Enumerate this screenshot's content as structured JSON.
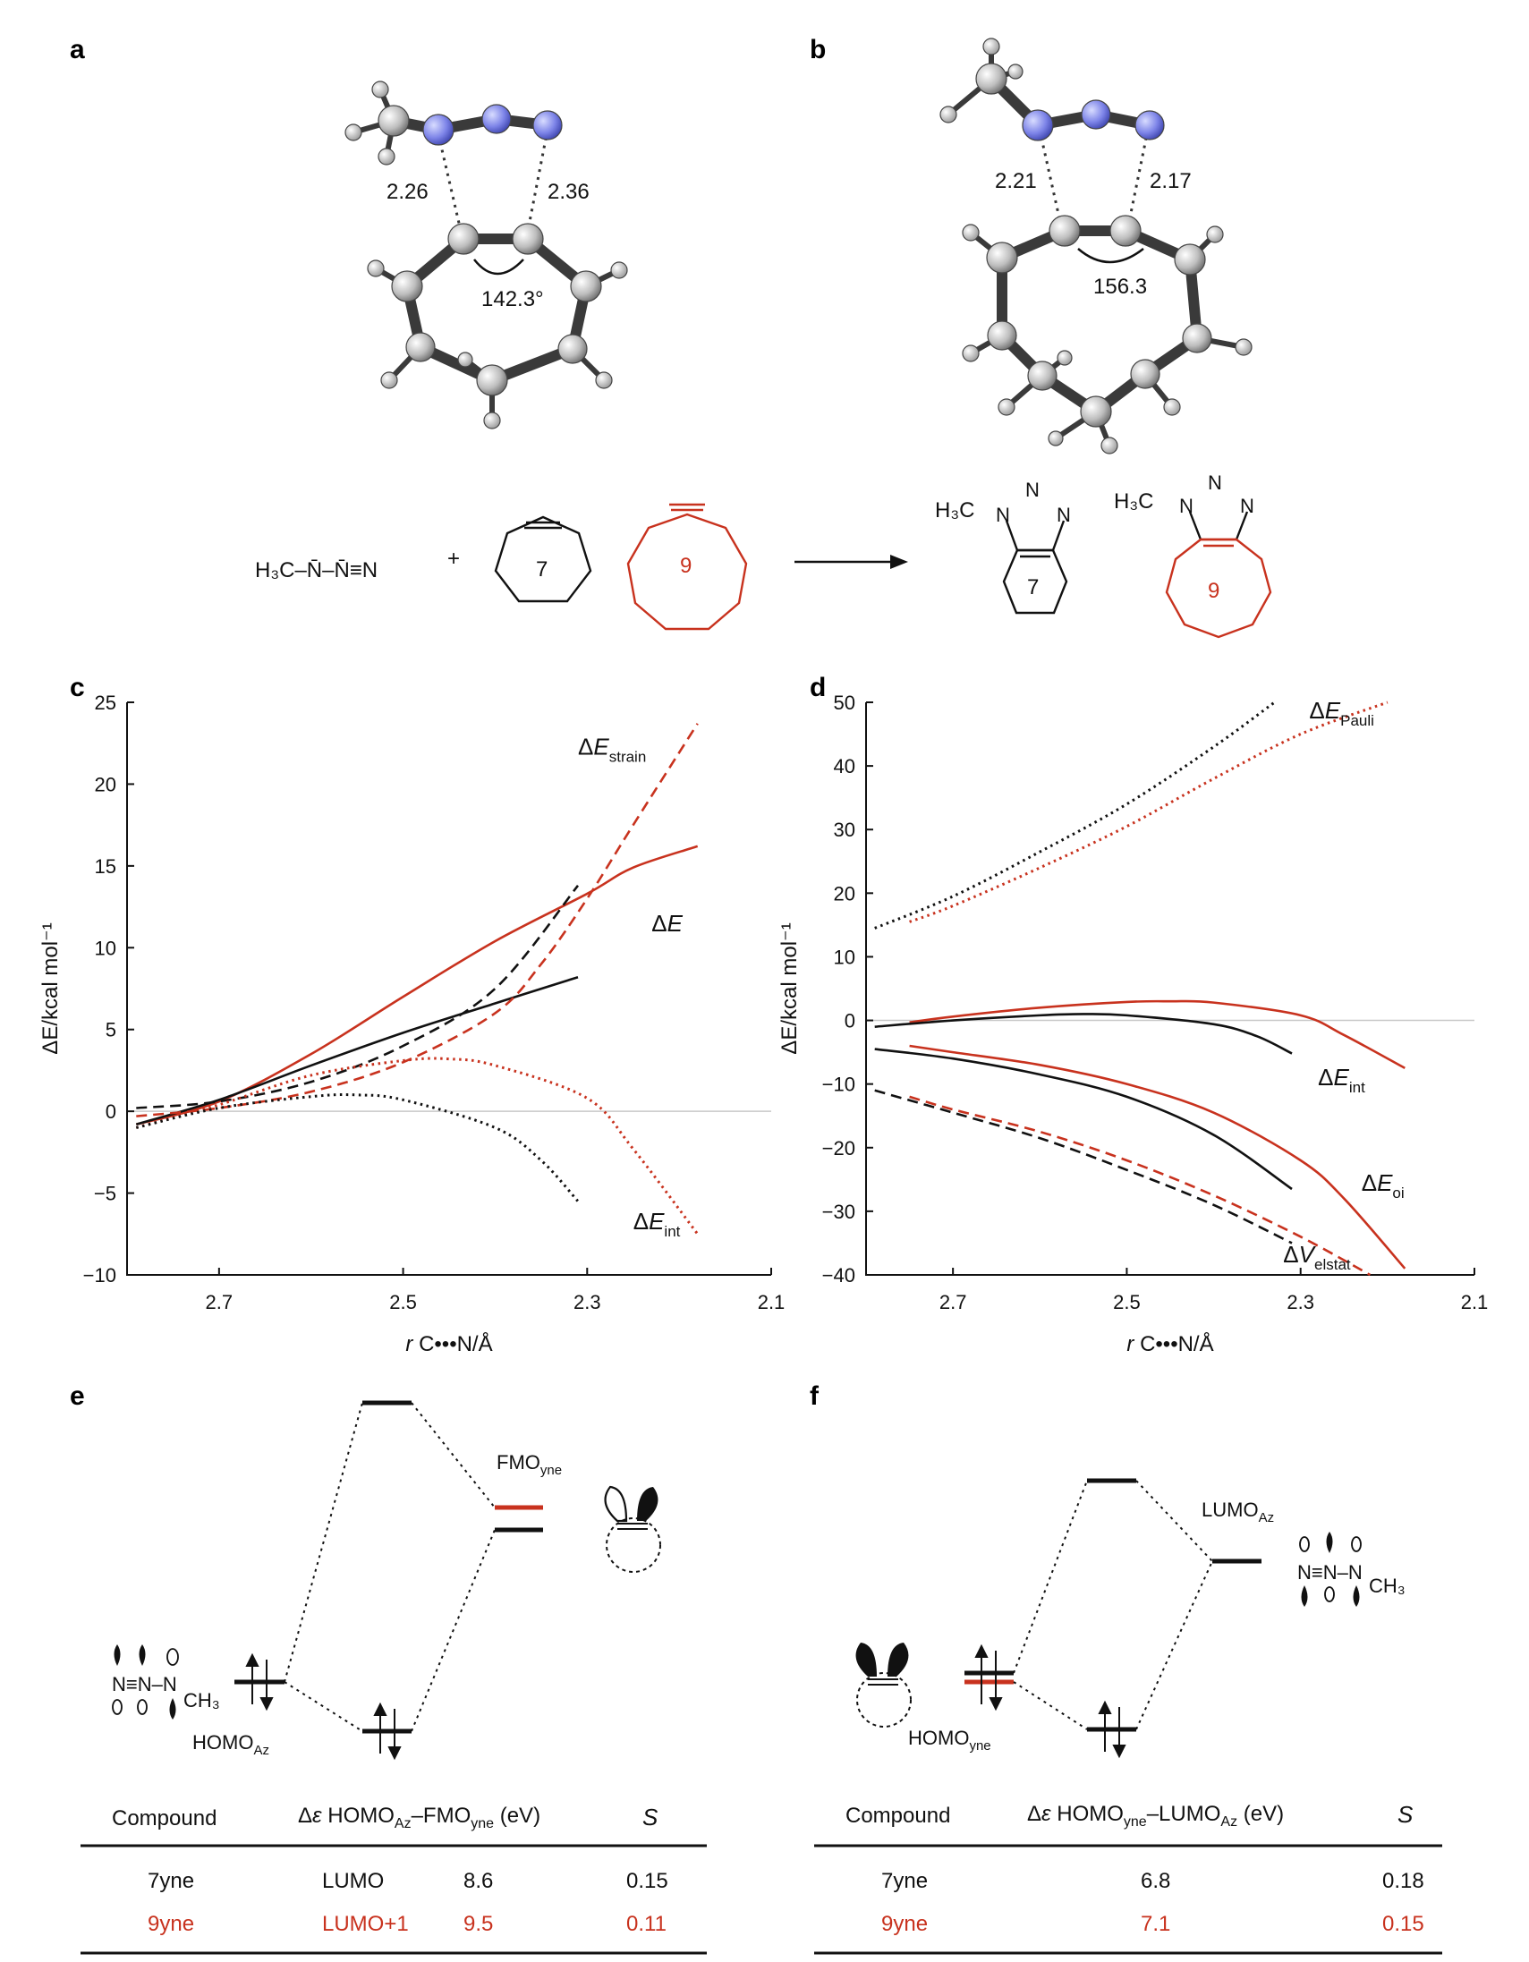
{
  "panels": {
    "a": "a",
    "b": "b",
    "c": "c",
    "d": "d",
    "e": "e",
    "f": "f"
  },
  "structure_a": {
    "d1": "2.26",
    "d2": "2.36",
    "angle": "142.3°"
  },
  "structure_b": {
    "d1": "2.21",
    "d2": "2.17",
    "angle": "156.3"
  },
  "scheme": {
    "reactant": "H₃C–N̄–N̄≡N",
    "plus": "+",
    "ring7": "7",
    "ring9": "9",
    "product_methyl": "H₃C"
  },
  "colors": {
    "red": "#c8321e",
    "black": "#111111",
    "zero_line": "#c8c8c8"
  },
  "chart_data": [
    {
      "id": "c",
      "type": "line",
      "xlabel": "r C•••N/Å",
      "ylabel": "ΔE/kcal mol⁻¹",
      "xlim": [
        2.8,
        2.1
      ],
      "ylim": [
        -10,
        25
      ],
      "xticks": [
        2.7,
        2.5,
        2.3,
        2.1
      ],
      "yticks": [
        -10,
        -5,
        0,
        5,
        10,
        15,
        20,
        25
      ],
      "annotations": [
        {
          "base": "ΔE",
          "sub": "strain",
          "x": 2.31,
          "y": 21.8
        },
        {
          "base": "ΔE",
          "sub": "",
          "x": 2.23,
          "y": 11.0
        },
        {
          "base": "ΔE",
          "sub": "int",
          "x": 2.25,
          "y": -7.2
        }
      ],
      "series": [
        {
          "color": "red",
          "style": "solid",
          "x": [
            2.79,
            2.7,
            2.6,
            2.5,
            2.4,
            2.3,
            2.25,
            2.18
          ],
          "y": [
            -0.8,
            0.6,
            3.5,
            7.0,
            10.4,
            13.3,
            14.9,
            16.2
          ]
        },
        {
          "color": "black",
          "style": "solid",
          "x": [
            2.79,
            2.7,
            2.6,
            2.5,
            2.4,
            2.31
          ],
          "y": [
            -0.8,
            0.7,
            2.8,
            4.8,
            6.6,
            8.2
          ]
        },
        {
          "color": "red",
          "style": "dashed",
          "x": [
            2.79,
            2.7,
            2.6,
            2.5,
            2.4,
            2.35,
            2.3,
            2.25,
            2.18
          ],
          "y": [
            -0.3,
            0.2,
            1.2,
            3.0,
            6.0,
            9.0,
            13.0,
            17.5,
            23.7
          ]
        },
        {
          "color": "black",
          "style": "dashed",
          "x": [
            2.79,
            2.7,
            2.6,
            2.5,
            2.4,
            2.31
          ],
          "y": [
            0.2,
            0.6,
            1.8,
            4.0,
            7.5,
            13.8
          ]
        },
        {
          "color": "red",
          "style": "dotted",
          "x": [
            2.79,
            2.7,
            2.6,
            2.5,
            2.45,
            2.4,
            2.3,
            2.25,
            2.18
          ],
          "y": [
            -1.0,
            0.4,
            2.2,
            3.1,
            3.2,
            2.8,
            0.8,
            -2.3,
            -7.5
          ]
        },
        {
          "color": "black",
          "style": "dotted",
          "x": [
            2.79,
            2.7,
            2.6,
            2.55,
            2.5,
            2.4,
            2.35,
            2.31
          ],
          "y": [
            -1.0,
            0.2,
            0.9,
            1.0,
            0.7,
            -1.0,
            -3.0,
            -5.5
          ]
        }
      ]
    },
    {
      "id": "d",
      "type": "line",
      "xlabel": "r C•••N/Å",
      "ylabel": "ΔE/kcal mol⁻¹",
      "xlim": [
        2.8,
        2.1
      ],
      "ylim": [
        -40,
        50
      ],
      "xticks": [
        2.7,
        2.5,
        2.3,
        2.1
      ],
      "yticks": [
        -40,
        -30,
        -20,
        -10,
        0,
        10,
        20,
        30,
        40,
        50
      ],
      "annotations": [
        {
          "base": "ΔE",
          "sub": "Pauli",
          "x": 2.29,
          "y": 47.5
        },
        {
          "base": "ΔE",
          "sub": "int",
          "x": 2.28,
          "y": -10.2
        },
        {
          "base": "ΔE",
          "sub": "oi",
          "x": 2.23,
          "y": -26.8
        },
        {
          "base": "ΔV",
          "sub": "elstat",
          "x": 2.32,
          "y": -38.0
        }
      ],
      "series": [
        {
          "color": "black",
          "style": "dotted",
          "x": [
            2.79,
            2.7,
            2.6,
            2.5,
            2.4,
            2.33
          ],
          "y": [
            14.5,
            19.5,
            26.5,
            34.0,
            43.0,
            50.0
          ]
        },
        {
          "color": "red",
          "style": "dotted",
          "x": [
            2.75,
            2.7,
            2.6,
            2.5,
            2.4,
            2.3,
            2.2
          ],
          "y": [
            15.5,
            18.0,
            24.0,
            30.5,
            38.0,
            45.0,
            50.0
          ]
        },
        {
          "color": "red",
          "style": "solid",
          "x": [
            2.75,
            2.7,
            2.6,
            2.5,
            2.45,
            2.4,
            2.3,
            2.25,
            2.18
          ],
          "y": [
            -0.3,
            0.6,
            2.0,
            2.9,
            3.0,
            2.8,
            0.8,
            -2.3,
            -7.5
          ]
        },
        {
          "color": "black",
          "style": "solid",
          "x": [
            2.79,
            2.7,
            2.6,
            2.55,
            2.5,
            2.4,
            2.35,
            2.31
          ],
          "y": [
            -1.0,
            0.0,
            0.8,
            1.0,
            0.8,
            -0.6,
            -2.5,
            -5.2
          ]
        },
        {
          "color": "black",
          "style": "solid",
          "x": [
            2.79,
            2.7,
            2.6,
            2.5,
            2.4,
            2.31
          ],
          "y": [
            -4.5,
            -6.0,
            -8.5,
            -12.0,
            -18.0,
            -26.5
          ]
        },
        {
          "color": "red",
          "style": "solid",
          "x": [
            2.75,
            2.7,
            2.6,
            2.5,
            2.4,
            2.3,
            2.25,
            2.18
          ],
          "y": [
            -4.0,
            -5.0,
            -7.0,
            -10.0,
            -14.5,
            -22.0,
            -28.0,
            -39.0
          ]
        },
        {
          "color": "black",
          "style": "dashed",
          "x": [
            2.79,
            2.7,
            2.6,
            2.5,
            2.4,
            2.31
          ],
          "y": [
            -11.0,
            -14.5,
            -18.5,
            -23.5,
            -29.0,
            -35.0
          ]
        },
        {
          "color": "red",
          "style": "dashed",
          "x": [
            2.75,
            2.7,
            2.6,
            2.5,
            2.4,
            2.3,
            2.22
          ],
          "y": [
            -12.0,
            -14.0,
            -17.5,
            -22.0,
            -27.5,
            -34.0,
            -40.0
          ]
        }
      ]
    }
  ],
  "mo_e": {
    "fmo_base": "FMO",
    "fmo_sub": "yne",
    "homo_base": "HOMO",
    "homo_sub": "Az",
    "ch3": "CH₃"
  },
  "mo_f": {
    "lumo_base": "LUMO",
    "lumo_sub": "Az",
    "homo_base": "HOMO",
    "homo_sub": "yne",
    "ch3": "CH₃"
  },
  "table_e": {
    "headers": {
      "compound": "Compound",
      "gap": "Δε HOMOAz–FMOyne (eV)",
      "s": "S"
    },
    "rows": [
      {
        "compound": "7yne",
        "fmo": "LUMO",
        "gap": "8.6",
        "s": "0.15",
        "color": "black"
      },
      {
        "compound": "9yne",
        "fmo": "LUMO+1",
        "gap": "9.5",
        "s": "0.11",
        "color": "red"
      }
    ]
  },
  "table_f": {
    "headers": {
      "compound": "Compound",
      "gap": "Δε HOMOyne–LUMOAz (eV)",
      "s": "S"
    },
    "rows": [
      {
        "compound": "7yne",
        "gap": "6.8",
        "s": "0.18",
        "color": "black"
      },
      {
        "compound": "9yne",
        "gap": "7.1",
        "s": "0.15",
        "color": "red"
      }
    ]
  }
}
